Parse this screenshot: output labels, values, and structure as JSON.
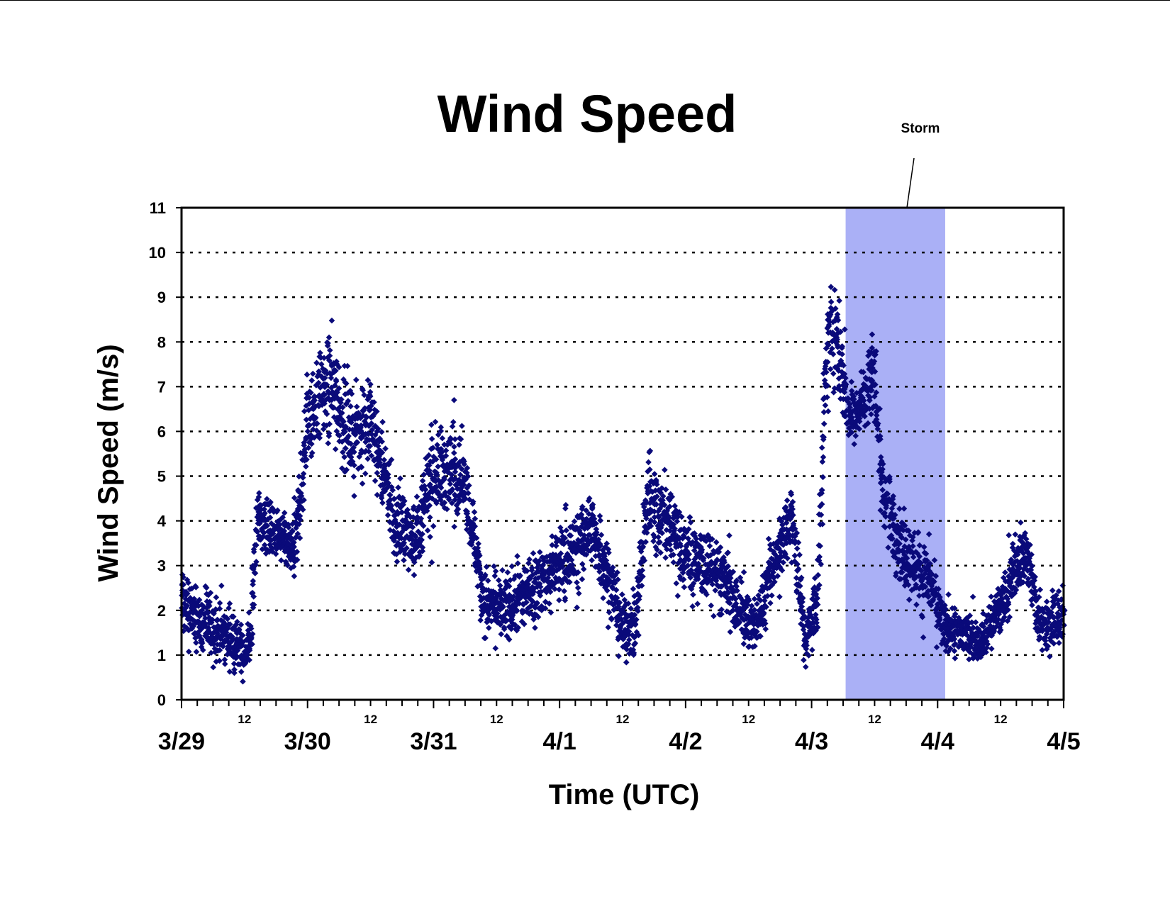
{
  "chart_data": {
    "type": "scatter",
    "title": "Wind Speed",
    "xlabel": "Time (UTC)",
    "ylabel": "Wind Speed (m/s)",
    "ylim": [
      0,
      11
    ],
    "yticks": [
      "0",
      "1",
      "2",
      "3",
      "4",
      "5",
      "6",
      "7",
      "8",
      "9",
      "10",
      "11"
    ],
    "x_unit": "days (0 = 3/29 00 UTC)",
    "xlim": [
      0,
      7
    ],
    "x_day_labels": [
      "3/29",
      "3/30",
      "3/31",
      "4/1",
      "4/2",
      "4/3",
      "4/4",
      "4/5"
    ],
    "x_noon_label": "12",
    "grid": "horizontal dotted",
    "marker": "diamond",
    "series_color": "#0a0a7a",
    "highlight": {
      "label": "Storm",
      "x_start": 5.27,
      "x_end": 6.06,
      "color": "#aab0f6"
    },
    "series": [
      {
        "points_summary": "dense high-frequency wind speed scatter",
        "envelope": [
          [
            0.0,
            0.9,
            3.6
          ],
          [
            0.1,
            0.7,
            2.9
          ],
          [
            0.25,
            0.6,
            2.6
          ],
          [
            0.4,
            0.5,
            2.2
          ],
          [
            0.5,
            0.3,
            1.6
          ],
          [
            0.55,
            0.4,
            2.4
          ],
          [
            0.6,
            3.2,
            5.0
          ],
          [
            0.75,
            2.8,
            4.6
          ],
          [
            0.9,
            2.4,
            4.2
          ],
          [
            1.0,
            4.5,
            7.8
          ],
          [
            1.1,
            5.5,
            8.4
          ],
          [
            1.2,
            5.2,
            8.8
          ],
          [
            1.35,
            4.6,
            7.2
          ],
          [
            1.5,
            4.8,
            7.6
          ],
          [
            1.6,
            3.8,
            6.3
          ],
          [
            1.7,
            2.8,
            5.0
          ],
          [
            1.85,
            2.5,
            4.8
          ],
          [
            2.0,
            3.5,
            6.6
          ],
          [
            2.15,
            3.8,
            6.5
          ],
          [
            2.25,
            3.6,
            6.2
          ],
          [
            2.4,
            1.2,
            3.2
          ],
          [
            2.55,
            1.0,
            3.0
          ],
          [
            2.7,
            1.2,
            3.4
          ],
          [
            2.85,
            1.5,
            3.8
          ],
          [
            3.0,
            1.8,
            4.2
          ],
          [
            3.15,
            2.2,
            4.6
          ],
          [
            3.25,
            2.6,
            5.2
          ],
          [
            3.35,
            2.0,
            4.4
          ],
          [
            3.5,
            0.6,
            2.6
          ],
          [
            3.6,
            0.6,
            2.6
          ],
          [
            3.7,
            3.0,
            6.2
          ],
          [
            3.85,
            2.8,
            5.2
          ],
          [
            4.0,
            2.0,
            4.4
          ],
          [
            4.15,
            1.8,
            4.2
          ],
          [
            4.3,
            1.6,
            3.8
          ],
          [
            4.45,
            1.0,
            2.8
          ],
          [
            4.55,
            0.8,
            2.4
          ],
          [
            4.65,
            1.5,
            3.5
          ],
          [
            4.75,
            2.4,
            4.8
          ],
          [
            4.85,
            2.8,
            5.2
          ],
          [
            4.95,
            0.5,
            2.0
          ],
          [
            5.05,
            1.2,
            3.5
          ],
          [
            5.12,
            6.0,
            9.8
          ],
          [
            5.2,
            6.6,
            9.6
          ],
          [
            5.3,
            5.4,
            7.2
          ],
          [
            5.4,
            5.6,
            7.6
          ],
          [
            5.5,
            6.2,
            8.6
          ],
          [
            5.55,
            3.8,
            6.0
          ],
          [
            5.65,
            2.8,
            5.0
          ],
          [
            5.75,
            2.0,
            4.5
          ],
          [
            5.85,
            1.8,
            4.0
          ],
          [
            5.95,
            1.6,
            3.6
          ],
          [
            6.05,
            0.8,
            2.4
          ],
          [
            6.2,
            0.8,
            2.2
          ],
          [
            6.35,
            0.7,
            2.0
          ],
          [
            6.5,
            1.2,
            2.8
          ],
          [
            6.6,
            1.8,
            3.8
          ],
          [
            6.7,
            2.4,
            4.4
          ],
          [
            6.8,
            1.0,
            2.6
          ],
          [
            6.9,
            0.9,
            2.6
          ],
          [
            7.0,
            0.8,
            2.8
          ]
        ]
      }
    ]
  }
}
